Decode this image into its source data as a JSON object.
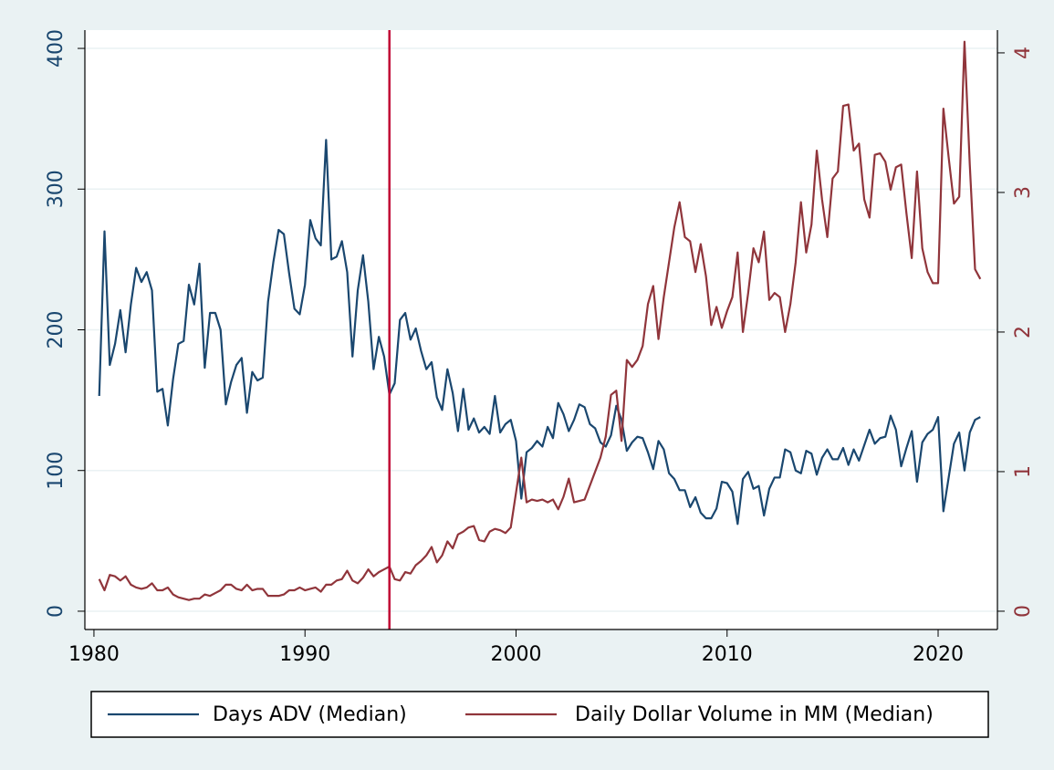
{
  "chart_data": {
    "type": "line",
    "x": [
      1980.25,
      1980.5,
      1980.75,
      1981,
      1981.25,
      1981.5,
      1981.75,
      1982,
      1982.25,
      1982.5,
      1982.75,
      1983,
      1983.25,
      1983.5,
      1983.75,
      1984,
      1984.25,
      1984.5,
      1984.75,
      1985,
      1985.25,
      1985.5,
      1985.75,
      1986,
      1986.25,
      1986.5,
      1986.75,
      1987,
      1987.25,
      1987.5,
      1987.75,
      1988,
      1988.25,
      1988.5,
      1988.75,
      1989,
      1989.25,
      1989.5,
      1989.75,
      1990,
      1990.25,
      1990.5,
      1990.75,
      1991,
      1991.25,
      1991.5,
      1991.75,
      1992,
      1992.25,
      1992.5,
      1992.75,
      1993,
      1993.25,
      1993.5,
      1993.75,
      1994,
      1994.25,
      1994.5,
      1994.75,
      1995,
      1995.25,
      1995.5,
      1995.75,
      1996,
      1996.25,
      1996.5,
      1996.75,
      1997,
      1997.25,
      1997.5,
      1997.75,
      1998,
      1998.25,
      1998.5,
      1998.75,
      1999,
      1999.25,
      1999.5,
      1999.75,
      2000,
      2000.25,
      2000.5,
      2000.75,
      2001,
      2001.25,
      2001.5,
      2001.75,
      2002,
      2002.25,
      2002.5,
      2002.75,
      2003,
      2003.25,
      2003.5,
      2003.75,
      2004,
      2004.25,
      2004.5,
      2004.75,
      2005,
      2005.25,
      2005.5,
      2005.75,
      2006,
      2006.25,
      2006.5,
      2006.75,
      2007,
      2007.25,
      2007.5,
      2007.75,
      2008,
      2008.25,
      2008.5,
      2008.75,
      2009,
      2009.25,
      2009.5,
      2009.75,
      2010,
      2010.25,
      2010.5,
      2010.75,
      2011,
      2011.25,
      2011.5,
      2011.75,
      2012,
      2012.25,
      2012.5,
      2012.75,
      2013,
      2013.25,
      2013.5,
      2013.75,
      2014,
      2014.25,
      2014.5,
      2014.75,
      2015,
      2015.25,
      2015.5,
      2015.75,
      2016,
      2016.25,
      2016.5,
      2016.75,
      2017,
      2017.25,
      2017.5,
      2017.75,
      2018,
      2018.25,
      2018.5,
      2018.75,
      2019,
      2019.25,
      2019.5,
      2019.75,
      2020,
      2020.25,
      2020.5,
      2020.75,
      2021,
      2021.25,
      2021.5,
      2021.75,
      2022
    ],
    "series": [
      {
        "name": "Days ADV (Median)",
        "color": "#1a476f",
        "values": [
          153,
          270,
          175,
          190,
          214,
          184,
          218,
          244,
          234,
          241,
          228,
          156,
          158,
          132,
          165,
          190,
          192,
          232,
          218,
          247,
          173,
          212,
          212,
          200,
          147,
          163,
          175,
          180,
          141,
          170,
          164,
          166,
          220,
          248,
          271,
          268,
          240,
          215,
          211,
          232,
          278,
          265,
          260,
          335,
          250,
          252,
          263,
          241,
          181,
          228,
          253,
          220,
          172,
          195,
          181,
          154,
          162,
          207,
          212,
          193,
          201,
          185,
          172,
          177,
          152,
          143,
          172,
          155,
          128,
          158,
          129,
          137,
          127,
          131,
          126,
          153,
          127,
          133,
          136,
          121,
          80,
          113,
          116,
          121,
          117,
          131,
          123,
          148,
          140,
          128,
          136,
          147,
          145,
          133,
          130,
          120,
          117,
          125,
          146,
          136,
          114,
          120,
          124,
          123,
          113,
          101,
          121,
          115,
          98,
          94,
          86,
          86,
          74,
          81,
          70,
          66,
          66,
          73,
          92,
          91,
          85,
          62,
          94,
          99,
          87,
          89,
          68,
          87,
          95,
          95,
          115,
          113,
          100,
          98,
          114,
          112,
          97,
          109,
          115,
          108,
          108,
          116,
          104,
          115,
          107,
          118,
          129,
          119,
          123,
          124,
          139,
          129,
          103,
          116,
          128,
          92,
          120,
          126,
          129,
          138,
          71,
          95,
          119,
          127,
          100,
          127,
          136,
          138
        ]
      },
      {
        "name": "Daily Dollar Volume in MM (Median)",
        "color": "#90353b",
        "axis": "y2",
        "values": [
          0.23,
          0.15,
          0.26,
          0.25,
          0.22,
          0.25,
          0.19,
          0.17,
          0.16,
          0.17,
          0.2,
          0.15,
          0.15,
          0.17,
          0.12,
          0.1,
          0.09,
          0.08,
          0.09,
          0.09,
          0.12,
          0.11,
          0.13,
          0.15,
          0.19,
          0.19,
          0.16,
          0.15,
          0.19,
          0.15,
          0.16,
          0.16,
          0.11,
          0.11,
          0.11,
          0.12,
          0.15,
          0.15,
          0.17,
          0.15,
          0.16,
          0.17,
          0.14,
          0.19,
          0.19,
          0.22,
          0.23,
          0.29,
          0.22,
          0.2,
          0.24,
          0.3,
          0.25,
          0.28,
          0.3,
          0.32,
          0.23,
          0.22,
          0.28,
          0.27,
          0.33,
          0.36,
          0.4,
          0.46,
          0.35,
          0.4,
          0.5,
          0.45,
          0.55,
          0.57,
          0.6,
          0.61,
          0.51,
          0.5,
          0.57,
          0.59,
          0.58,
          0.56,
          0.6,
          0.85,
          1.1,
          0.78,
          0.8,
          0.79,
          0.8,
          0.78,
          0.8,
          0.73,
          0.82,
          0.95,
          0.78,
          0.79,
          0.8,
          0.9,
          1.0,
          1.1,
          1.25,
          1.55,
          1.58,
          1.22,
          1.8,
          1.75,
          1.8,
          1.9,
          2.2,
          2.33,
          1.95,
          2.25,
          2.5,
          2.75,
          2.93,
          2.68,
          2.65,
          2.43,
          2.63,
          2.4,
          2.05,
          2.18,
          2.03,
          2.15,
          2.25,
          2.57,
          2.0,
          2.28,
          2.6,
          2.5,
          2.72,
          2.23,
          2.28,
          2.25,
          2.0,
          2.2,
          2.5,
          2.93,
          2.57,
          2.77,
          3.3,
          2.95,
          2.68,
          3.1,
          3.15,
          3.62,
          3.63,
          3.3,
          3.35,
          2.95,
          2.82,
          3.27,
          3.28,
          3.22,
          3.02,
          3.18,
          3.2,
          2.85,
          2.53,
          3.15,
          2.6,
          2.43,
          2.35,
          2.35,
          3.6,
          3.25,
          2.92,
          2.97,
          4.08,
          3.2,
          2.45,
          2.38
        ]
      }
    ],
    "xlim": [
      1979.57,
      2022.81
    ],
    "xticks": [
      1980,
      1990,
      2000,
      2010,
      2020
    ],
    "ylim": [
      -13,
      413
    ],
    "yticks": [
      0,
      100,
      200,
      300,
      400
    ],
    "y2lim": [
      -0.131,
      4.163
    ],
    "y2ticks": [
      0,
      1,
      2,
      3,
      4
    ],
    "grid": true,
    "legend": "bottom",
    "vline": {
      "x": 1994,
      "color": "#c10534"
    }
  }
}
